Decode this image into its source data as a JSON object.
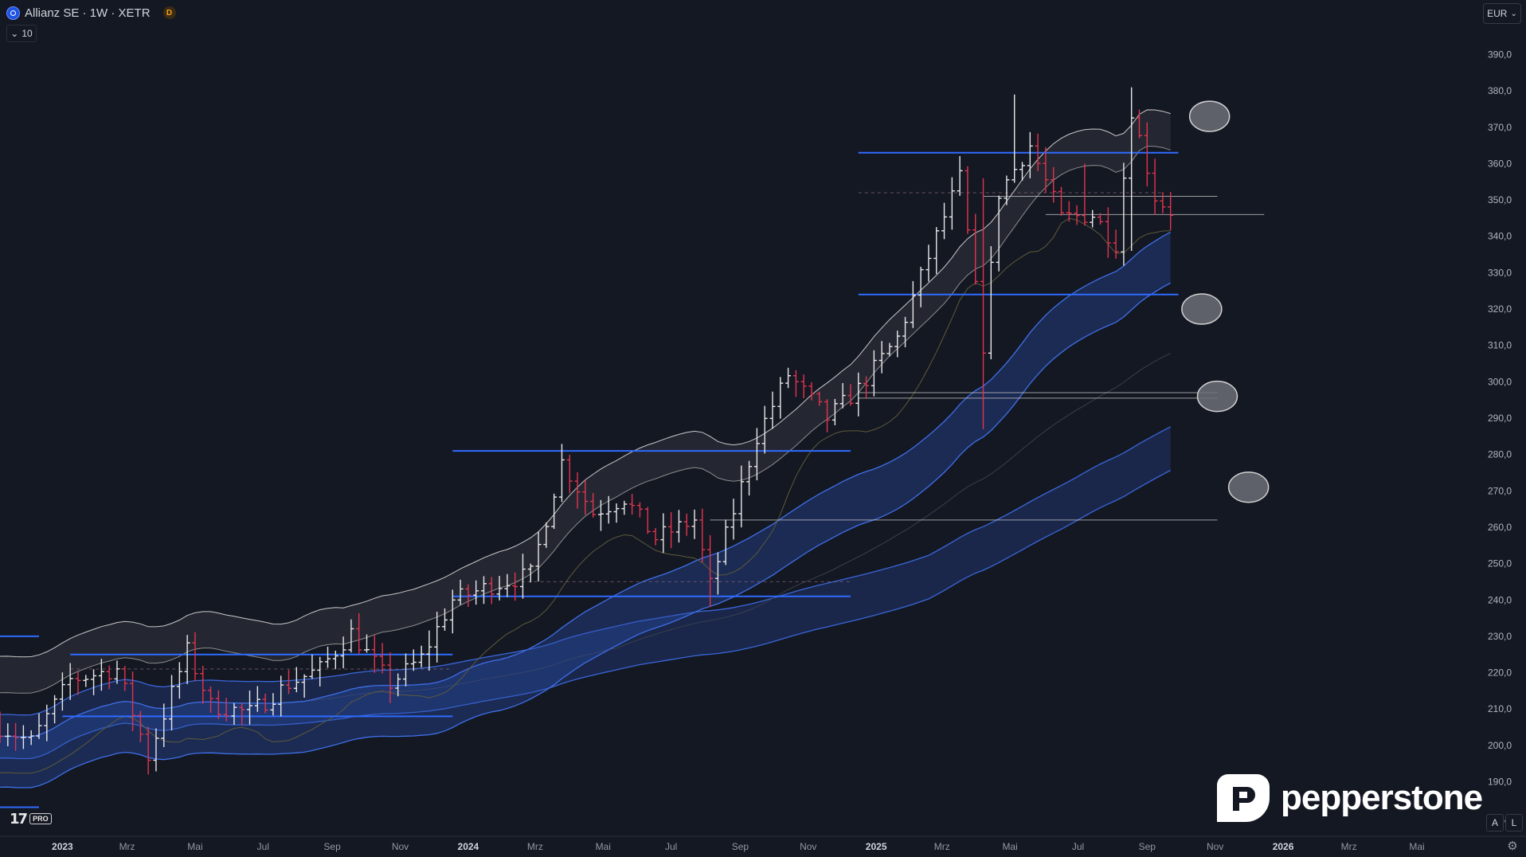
{
  "header": {
    "symbol": "Allianz SE · 1W · XETR",
    "badge": "D",
    "indicator_count": "10",
    "currency": "EUR"
  },
  "brand": {
    "text": "pepperstone"
  },
  "tv_badge": {
    "pro": "PRO"
  },
  "buttons": {
    "auto": "A",
    "log": "L"
  },
  "colors": {
    "background": "#141823",
    "bull_bar": "#e8e8e8",
    "bear_bar": "#e2344f",
    "support_line": "#2f6bff",
    "band_fill": "#2a4fb0",
    "envelope": "#c8c8c8"
  },
  "chart_data": {
    "type": "ohlc",
    "price_axis": {
      "min": 175,
      "max": 405,
      "ticks": [
        180,
        190,
        200,
        210,
        220,
        230,
        240,
        250,
        260,
        270,
        280,
        290,
        300,
        310,
        320,
        330,
        340,
        350,
        360,
        370,
        380,
        390,
        400
      ],
      "tick_labels": [
        "180,0",
        "190,0",
        "200,0",
        "210,0",
        "220,0",
        "230,0",
        "240,0",
        "250,0",
        "260,0",
        "270,0",
        "280,0",
        "290,0",
        "300,0",
        "310,0",
        "320,0",
        "330,0",
        "340,0",
        "350,0",
        "360,0",
        "370,0",
        "380,0",
        "390,0",
        "400,0"
      ]
    },
    "time_axis": {
      "range": [
        "2022-11-07",
        "2026-06-15"
      ],
      "labels": [
        {
          "date": "2023-01-02",
          "label": "2023",
          "bold": true
        },
        {
          "date": "2023-03-01",
          "label": "Mrz"
        },
        {
          "date": "2023-05-01",
          "label": "Mai"
        },
        {
          "date": "2023-07-01",
          "label": "Jul"
        },
        {
          "date": "2023-09-01",
          "label": "Sep"
        },
        {
          "date": "2023-11-01",
          "label": "Nov"
        },
        {
          "date": "2024-01-01",
          "label": "2024",
          "bold": true
        },
        {
          "date": "2024-03-01",
          "label": "Mrz"
        },
        {
          "date": "2024-05-01",
          "label": "Mai"
        },
        {
          "date": "2024-07-01",
          "label": "Jul"
        },
        {
          "date": "2024-09-01",
          "label": "Sep"
        },
        {
          "date": "2024-11-01",
          "label": "Nov"
        },
        {
          "date": "2025-01-01",
          "label": "2025",
          "bold": true
        },
        {
          "date": "2025-03-01",
          "label": "Mrz"
        },
        {
          "date": "2025-05-01",
          "label": "Mai"
        },
        {
          "date": "2025-07-01",
          "label": "Jul"
        },
        {
          "date": "2025-09-01",
          "label": "Sep"
        },
        {
          "date": "2025-11-01",
          "label": "Nov"
        },
        {
          "date": "2026-01-01",
          "label": "2026",
          "bold": true
        },
        {
          "date": "2026-03-01",
          "label": "Mrz"
        },
        {
          "date": "2026-05-01",
          "label": "Mai"
        }
      ]
    },
    "anchors": [
      {
        "date": "2022-11-07",
        "price": 205
      },
      {
        "date": "2022-12-05",
        "price": 201
      },
      {
        "date": "2023-01-09",
        "price": 218
      },
      {
        "date": "2023-02-20",
        "price": 221
      },
      {
        "date": "2023-03-20",
        "price": 197
      },
      {
        "date": "2023-04-24",
        "price": 226
      },
      {
        "date": "2023-05-15",
        "price": 211
      },
      {
        "date": "2023-06-19",
        "price": 209
      },
      {
        "date": "2023-07-24",
        "price": 217
      },
      {
        "date": "2023-08-21",
        "price": 221
      },
      {
        "date": "2023-09-18",
        "price": 231
      },
      {
        "date": "2023-10-23",
        "price": 217
      },
      {
        "date": "2023-11-20",
        "price": 224
      },
      {
        "date": "2023-12-18",
        "price": 240
      },
      {
        "date": "2024-01-22",
        "price": 244
      },
      {
        "date": "2024-02-26",
        "price": 247
      },
      {
        "date": "2024-03-25",
        "price": 278
      },
      {
        "date": "2024-04-22",
        "price": 264
      },
      {
        "date": "2024-05-20",
        "price": 268
      },
      {
        "date": "2024-06-17",
        "price": 257
      },
      {
        "date": "2024-07-22",
        "price": 262
      },
      {
        "date": "2024-08-05",
        "price": 244
      },
      {
        "date": "2024-09-16",
        "price": 285
      },
      {
        "date": "2024-10-14",
        "price": 302
      },
      {
        "date": "2024-11-18",
        "price": 290
      },
      {
        "date": "2024-12-16",
        "price": 298
      },
      {
        "date": "2025-01-20",
        "price": 312
      },
      {
        "date": "2025-02-24",
        "price": 340
      },
      {
        "date": "2025-03-17",
        "price": 356
      },
      {
        "date": "2025-04-07",
        "price": 310
      },
      {
        "date": "2025-04-21",
        "price": 352
      },
      {
        "date": "2025-05-19",
        "price": 365
      },
      {
        "date": "2025-06-16",
        "price": 345
      },
      {
        "date": "2025-07-14",
        "price": 346
      },
      {
        "date": "2025-08-04",
        "price": 338
      },
      {
        "date": "2025-08-18",
        "price": 375
      },
      {
        "date": "2025-09-08",
        "price": 351
      },
      {
        "date": "2025-09-22",
        "price": 347
      }
    ],
    "support_lines": [
      {
        "price": 363,
        "from": "2024-12-16",
        "to": "2025-09-29"
      },
      {
        "price": 324,
        "from": "2024-12-16",
        "to": "2025-09-29"
      },
      {
        "price": 281,
        "from": "2023-12-18",
        "to": "2024-12-09"
      },
      {
        "price": 241,
        "from": "2023-12-18",
        "to": "2024-12-09"
      },
      {
        "price": 225,
        "from": "2023-01-09",
        "to": "2023-12-18"
      },
      {
        "price": 208,
        "from": "2023-01-02",
        "to": "2023-12-18"
      },
      {
        "price": 230,
        "from": "2022-11-07",
        "to": "2022-12-12"
      },
      {
        "price": 183,
        "from": "2022-11-07",
        "to": "2022-12-12"
      }
    ],
    "horizontal_levels": [
      {
        "price": 346,
        "from": "2025-06-02",
        "to": "2025-12-15",
        "style": "solid"
      },
      {
        "price": 351,
        "from": "2025-04-07",
        "to": "2025-11-03",
        "style": "solid"
      },
      {
        "price": 297,
        "from": "2024-12-16",
        "to": "2025-11-03",
        "style": "solid"
      },
      {
        "price": 295.5,
        "from": "2024-12-16",
        "to": "2025-11-03",
        "style": "solid"
      },
      {
        "price": 262,
        "from": "2024-08-05",
        "to": "2025-11-03",
        "style": "solid"
      },
      {
        "price": 352,
        "from": "2024-12-16",
        "to": "2025-09-15",
        "style": "dashed"
      },
      {
        "price": 245,
        "from": "2024-02-12",
        "to": "2024-12-09",
        "style": "dashed"
      },
      {
        "price": 221,
        "from": "2023-01-09",
        "to": "2023-12-18",
        "style": "dashed"
      }
    ],
    "markers": [
      {
        "date": "2025-10-27",
        "price": 373
      },
      {
        "date": "2025-10-20",
        "price": 320
      },
      {
        "date": "2025-11-03",
        "price": 296
      },
      {
        "date": "2025-12-01",
        "price": 271
      }
    ]
  }
}
